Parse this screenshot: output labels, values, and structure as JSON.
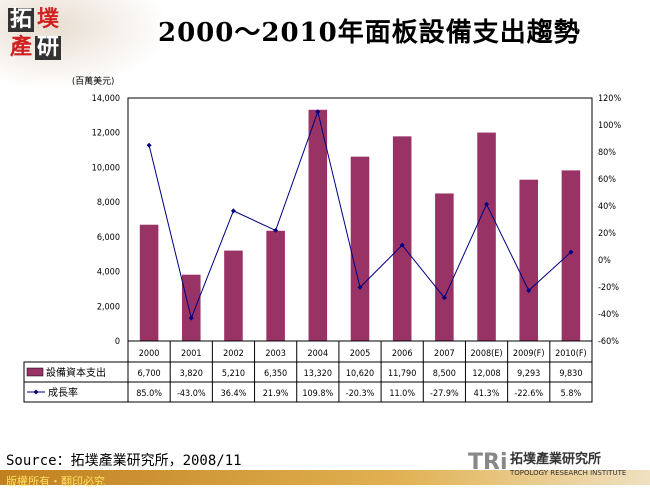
{
  "title": "2000～2010年面板設備支出趨勢",
  "logo": "拓墣產研",
  "source": "Source：拓墣產業研究所，2008/11",
  "footer": "版權所有・翻印必究",
  "brand": {
    "mark": "TRi",
    "name": "拓墣產業研究所",
    "sub": "TOPOLOGY RESEARCH INSTITUTE"
  },
  "chart_data": {
    "type": "bar+line",
    "unit_label": "(百萬美元)",
    "categories": [
      "2000",
      "2001",
      "2002",
      "2003",
      "2004",
      "2005",
      "2006",
      "2007",
      "2008(E)",
      "2009(F)",
      "2010(F)"
    ],
    "series": [
      {
        "name": "設備資本支出",
        "type": "bar",
        "color": "#993366",
        "values": [
          6700,
          3820,
          5210,
          6350,
          13320,
          10620,
          11790,
          8500,
          12008,
          9293,
          9830
        ],
        "labels": [
          "6,700",
          "3,820",
          "5,210",
          "6,350",
          "13,320",
          "10,620",
          "11,790",
          "8,500",
          "12,008",
          "9,293",
          "9,830"
        ]
      },
      {
        "name": "成長率",
        "type": "line",
        "axis": "right",
        "color": "#000080",
        "values": [
          85.0,
          -43.0,
          36.4,
          21.9,
          109.8,
          -20.3,
          11.0,
          -27.9,
          41.3,
          -22.6,
          5.8
        ],
        "labels": [
          "85.0%",
          "-43.0%",
          "36.4%",
          "21.9%",
          "109.8%",
          "-20.3%",
          "11.0%",
          "-27.9%",
          "41.3%",
          "-22.6%",
          "5.8%"
        ]
      }
    ],
    "ylim": [
      0,
      14000
    ],
    "yticks": [
      "0",
      "2,000",
      "4,000",
      "6,000",
      "8,000",
      "10,000",
      "12,000",
      "14,000"
    ],
    "y2lim": [
      -60,
      120
    ],
    "y2ticks": [
      "-60%",
      "-40%",
      "-20%",
      "0%",
      "20%",
      "40%",
      "60%",
      "80%",
      "100%",
      "120%"
    ],
    "grid": false,
    "legend": "data-table"
  }
}
